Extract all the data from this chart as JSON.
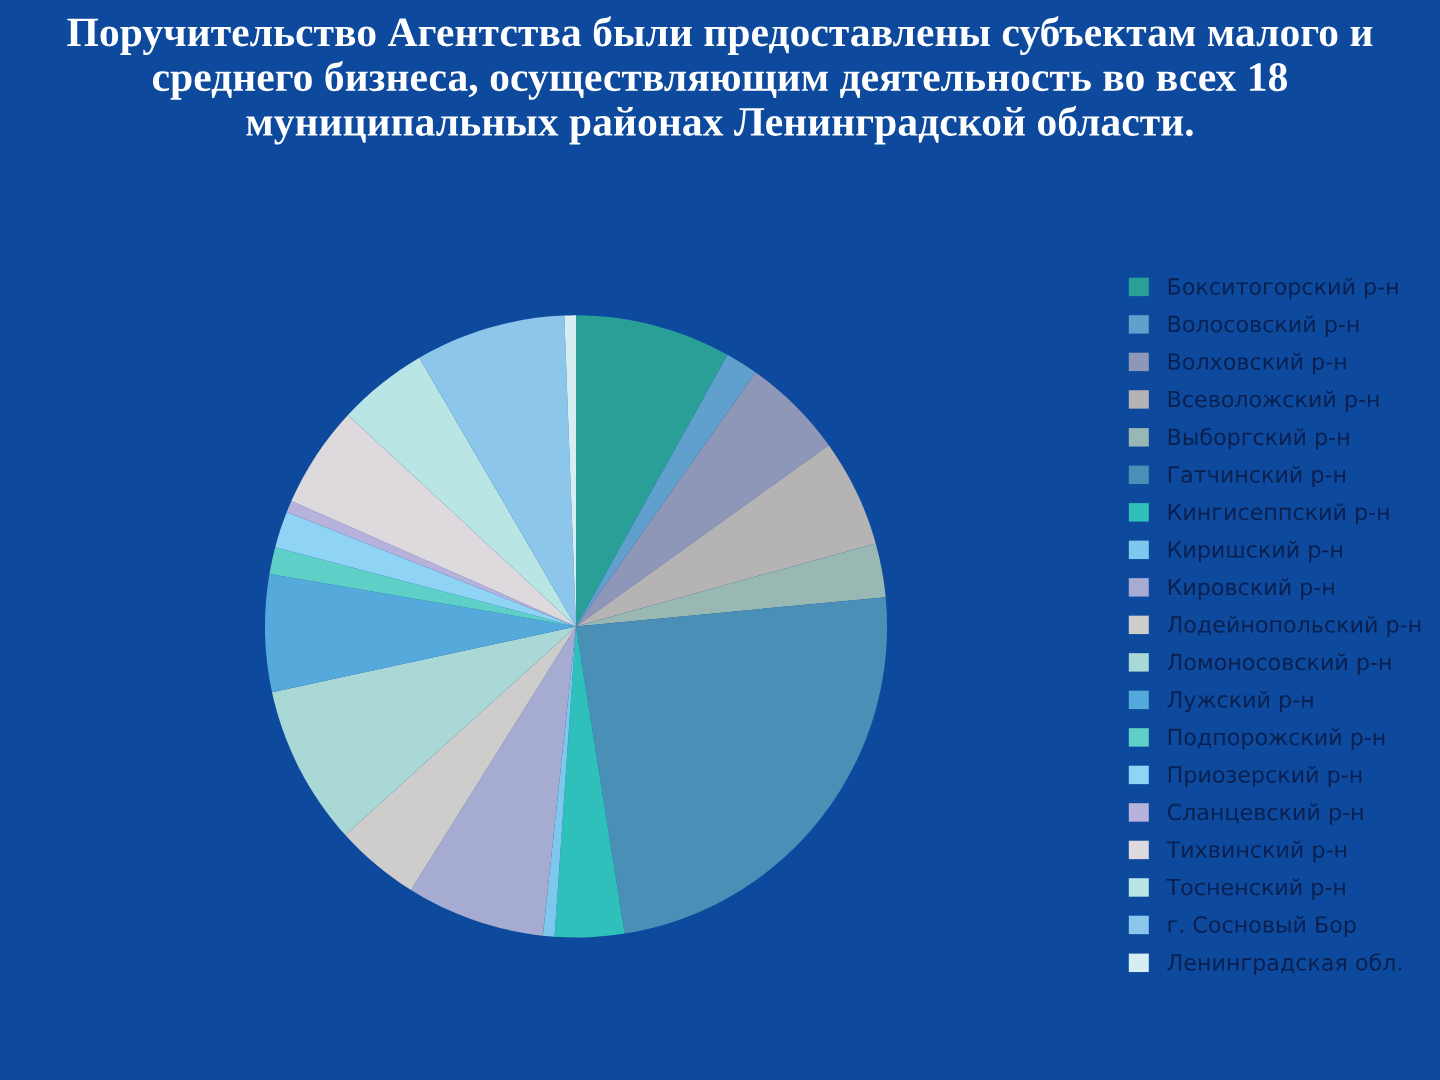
{
  "chart_data": {
    "type": "pie",
    "title": "Поручительство Агентства были предоставлены субъектам малого и среднего бизнеса, осуществляющим деятельность во всех 18 муниципальных районах Ленинградской области.",
    "categories": [
      "Бокситогорский р-н",
      "Волосовский р-н",
      "Волховский р-н",
      "Всеволожский р-н",
      "Выборгский р-н",
      "Гатчинский р-н",
      "Кингисеппский р-н",
      "Киришский р-н",
      "Кировский р-н",
      "Лодейнопольский р-н",
      "Ломоносовский р-н",
      "Лужский р-н",
      "Подпорожский р-н",
      "Приозерский р-н",
      "Сланцевский р-н",
      "Тихвинский р-н",
      "Тосненский р-н",
      "г. Сосновый Бор",
      "Ленинградская обл."
    ],
    "values": [
      8.1,
      1.7,
      5.3,
      5.6,
      2.8,
      24.0,
      3.6,
      0.6,
      7.2,
      4.4,
      8.3,
      6.1,
      1.4,
      1.9,
      0.6,
      5.3,
      4.7,
      7.8,
      0.6
    ],
    "colors": [
      "#2a9f98",
      "#5fa0cc",
      "#8e97b8",
      "#b5b3b3",
      "#9ab8b3",
      "#4a8fb5",
      "#2fc0bb",
      "#7ec8ee",
      "#a6abd2",
      "#cfcdcb",
      "#a9d8d6",
      "#55aadb",
      "#5fd0c8",
      "#8fd3f5",
      "#b7b2dc",
      "#ddd9dc",
      "#b9e6e4",
      "#8cc6ea",
      "#d6eef2"
    ],
    "legend": "right"
  }
}
